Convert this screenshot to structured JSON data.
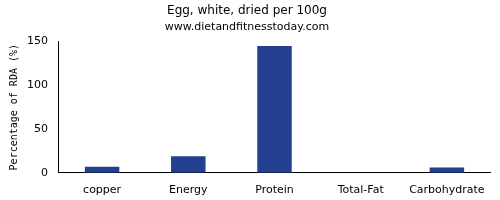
{
  "chart_data": {
    "type": "bar",
    "title": "Egg, white, dried per 100g",
    "subtitle": "www.dietandfitnesstoday.com",
    "y_label": "Percentage of RDA (%)",
    "categories": [
      "copper",
      "Energy",
      "Protein",
      "Total-Fat",
      "Carbohydrate"
    ],
    "values": [
      7,
      19,
      145,
      0,
      6
    ],
    "color": "#233f8f",
    "ylim": [
      0,
      150
    ],
    "yticks": [
      0,
      50,
      100,
      150
    ],
    "grid": false
  }
}
